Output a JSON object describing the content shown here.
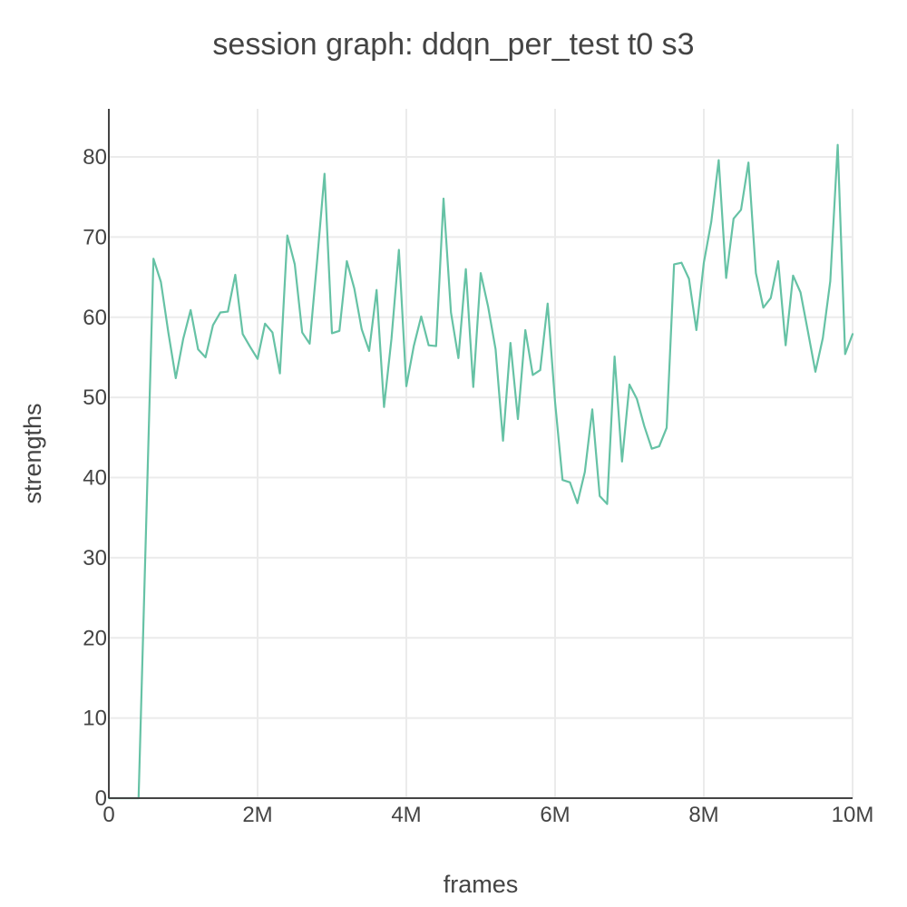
{
  "colors": {
    "series": "#66c2a5",
    "text": "#444444",
    "grid": "#ebebeb",
    "axis": "#444444"
  },
  "chart_data": {
    "type": "line",
    "title": "session graph: ddqn_per_test t0 s3",
    "xlabel": "frames",
    "ylabel": "strengths",
    "xlim": [
      0,
      10000000
    ],
    "ylim": [
      0,
      86
    ],
    "x_ticks": [
      {
        "value": 0,
        "label": "0"
      },
      {
        "value": 2000000,
        "label": "2M"
      },
      {
        "value": 4000000,
        "label": "4M"
      },
      {
        "value": 6000000,
        "label": "6M"
      },
      {
        "value": 8000000,
        "label": "8M"
      },
      {
        "value": 10000000,
        "label": "10M"
      }
    ],
    "y_ticks": [
      {
        "value": 0,
        "label": "0"
      },
      {
        "value": 10,
        "label": "10"
      },
      {
        "value": 20,
        "label": "20"
      },
      {
        "value": 30,
        "label": "30"
      },
      {
        "value": 40,
        "label": "40"
      },
      {
        "value": 50,
        "label": "50"
      },
      {
        "value": 60,
        "label": "60"
      },
      {
        "value": 70,
        "label": "70"
      },
      {
        "value": 80,
        "label": "80"
      }
    ],
    "grid": true,
    "legend": "none",
    "series": [
      {
        "x": [
          0,
          100000,
          200000,
          300000,
          400000,
          500000,
          600000,
          700000,
          800000,
          900000,
          1000000,
          1100000,
          1200000,
          1300000,
          1400000,
          1500000,
          1600000,
          1700000,
          1800000,
          1900000,
          2000000,
          2100000,
          2200000,
          2300000,
          2400000,
          2500000,
          2600000,
          2700000,
          2800000,
          2900000,
          3000000,
          3100000,
          3200000,
          3300000,
          3400000,
          3500000,
          3600000,
          3700000,
          3800000,
          3900000,
          4000000,
          4100000,
          4200000,
          4300000,
          4400000,
          4500000,
          4600000,
          4700000,
          4800000,
          4900000,
          5000000,
          5100000,
          5200000,
          5300000,
          5400000,
          5500000,
          5600000,
          5700000,
          5800000,
          5900000,
          6000000,
          6100000,
          6200000,
          6300000,
          6400000,
          6500000,
          6600000,
          6700000,
          6800000,
          6900000,
          7000000,
          7100000,
          7200000,
          7300000,
          7400000,
          7500000,
          7600000,
          7700000,
          7800000,
          7900000,
          8000000,
          8100000,
          8200000,
          8300000,
          8400000,
          8500000,
          8600000,
          8700000,
          8800000,
          8900000,
          9000000,
          9100000,
          9200000,
          9300000,
          9400000,
          9500000,
          9600000,
          9700000,
          9800000,
          9900000,
          10000000
        ],
        "values": [
          0,
          0,
          0,
          0,
          0,
          33.5,
          67.3,
          64.4,
          58.1,
          52.4,
          57.3,
          60.9,
          56.0,
          55.0,
          59.0,
          60.6,
          60.7,
          65.3,
          57.9,
          56.3,
          54.8,
          59.2,
          58.1,
          53.0,
          70.2,
          66.6,
          58.1,
          56.7,
          67.0,
          77.9,
          58.0,
          58.3,
          67.0,
          63.6,
          58.5,
          55.8,
          63.4,
          48.8,
          57.3,
          68.4,
          51.4,
          56.4,
          60.1,
          56.5,
          56.4,
          74.8,
          60.6,
          54.9,
          66.0,
          51.3,
          65.5,
          61.3,
          56.0,
          44.6,
          56.8,
          47.3,
          58.4,
          52.8,
          53.4,
          61.7,
          49.4,
          39.7,
          39.4,
          36.8,
          40.7,
          48.5,
          37.7,
          36.7,
          55.1,
          42.0,
          51.6,
          49.8,
          46.4,
          43.6,
          43.9,
          46.2,
          66.6,
          66.8,
          64.8,
          58.4,
          66.8,
          71.9,
          79.6,
          64.9,
          72.3,
          73.4,
          79.3,
          65.5,
          61.2,
          62.4,
          67.0,
          56.5,
          65.2,
          63.1,
          58.2,
          53.2,
          57.4,
          64.5,
          81.5,
          55.4,
          57.9
        ]
      }
    ]
  }
}
